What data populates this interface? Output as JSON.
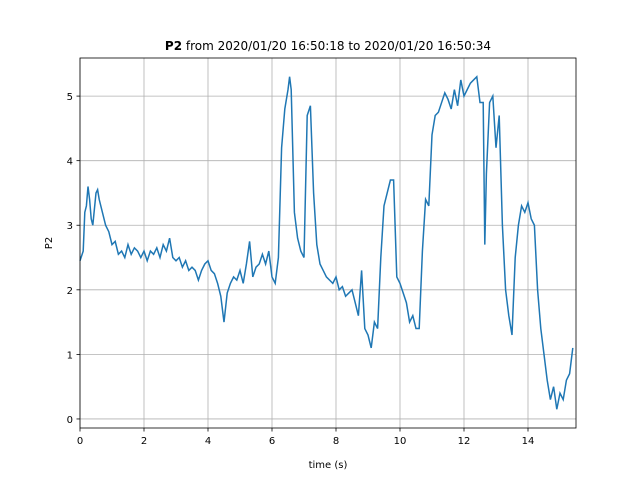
{
  "chart_data": {
    "type": "line",
    "title_bold": "P2",
    "title_rest": "from 2020/01/20 16:50:18 to 2020/01/20 16:50:34",
    "xlabel": "time (s)",
    "ylabel": "P2",
    "xlim": [
      0,
      15.5
    ],
    "ylim": [
      -0.14,
      5.59
    ],
    "xticks": [
      0,
      2,
      4,
      6,
      8,
      10,
      12,
      14
    ],
    "yticks": [
      0,
      1,
      2,
      3,
      4,
      5
    ],
    "grid": true,
    "series": [
      {
        "name": "P2",
        "color": "#1f77b4",
        "x": [
          0,
          0.1,
          0.15,
          0.2,
          0.25,
          0.3,
          0.35,
          0.4,
          0.5,
          0.55,
          0.6,
          0.7,
          0.8,
          0.9,
          1.0,
          1.1,
          1.2,
          1.3,
          1.4,
          1.5,
          1.6,
          1.7,
          1.8,
          1.9,
          2.0,
          2.1,
          2.2,
          2.3,
          2.4,
          2.5,
          2.6,
          2.7,
          2.8,
          2.9,
          3.0,
          3.1,
          3.2,
          3.3,
          3.4,
          3.5,
          3.6,
          3.7,
          3.8,
          3.9,
          4.0,
          4.1,
          4.2,
          4.3,
          4.4,
          4.5,
          4.6,
          4.7,
          4.8,
          4.9,
          5.0,
          5.1,
          5.2,
          5.3,
          5.4,
          5.5,
          5.6,
          5.7,
          5.8,
          5.9,
          6.0,
          6.1,
          6.2,
          6.3,
          6.4,
          6.5,
          6.55,
          6.6,
          6.7,
          6.8,
          6.9,
          7.0,
          7.1,
          7.2,
          7.3,
          7.4,
          7.5,
          7.6,
          7.7,
          7.8,
          7.9,
          8.0,
          8.1,
          8.2,
          8.3,
          8.4,
          8.5,
          8.6,
          8.7,
          8.8,
          8.9,
          9.0,
          9.1,
          9.2,
          9.3,
          9.4,
          9.5,
          9.6,
          9.7,
          9.8,
          9.9,
          10.0,
          10.1,
          10.2,
          10.3,
          10.4,
          10.5,
          10.6,
          10.7,
          10.8,
          10.9,
          11.0,
          11.1,
          11.2,
          11.3,
          11.4,
          11.5,
          11.6,
          11.7,
          11.8,
          11.9,
          12.0,
          12.1,
          12.2,
          12.3,
          12.4,
          12.5,
          12.6,
          12.65,
          12.7,
          12.8,
          12.9,
          13.0,
          13.1,
          13.2,
          13.3,
          13.4,
          13.5,
          13.6,
          13.7,
          13.8,
          13.9,
          14.0,
          14.1,
          14.2,
          14.3,
          14.4,
          14.5,
          14.6,
          14.7,
          14.8,
          14.9,
          15.0,
          15.1,
          15.2,
          15.3,
          15.4
        ],
        "values": [
          2.45,
          2.6,
          3.2,
          3.3,
          3.6,
          3.4,
          3.1,
          3.0,
          3.5,
          3.55,
          3.4,
          3.2,
          3.0,
          2.9,
          2.7,
          2.75,
          2.55,
          2.6,
          2.5,
          2.7,
          2.55,
          2.65,
          2.6,
          2.5,
          2.6,
          2.45,
          2.6,
          2.55,
          2.65,
          2.5,
          2.7,
          2.6,
          2.8,
          2.5,
          2.45,
          2.5,
          2.35,
          2.45,
          2.3,
          2.35,
          2.3,
          2.15,
          2.3,
          2.4,
          2.45,
          2.3,
          2.25,
          2.1,
          1.9,
          1.5,
          1.95,
          2.1,
          2.2,
          2.15,
          2.3,
          2.1,
          2.4,
          2.75,
          2.2,
          2.35,
          2.4,
          2.55,
          2.4,
          2.6,
          2.2,
          2.1,
          2.5,
          4.2,
          4.8,
          5.1,
          5.3,
          5.1,
          3.2,
          2.8,
          2.6,
          2.5,
          4.7,
          4.85,
          3.5,
          2.7,
          2.4,
          2.3,
          2.2,
          2.15,
          2.1,
          2.2,
          2.0,
          2.05,
          1.9,
          1.95,
          2.0,
          1.8,
          1.6,
          2.3,
          1.4,
          1.3,
          1.1,
          1.5,
          1.4,
          2.5,
          3.3,
          3.5,
          3.7,
          3.7,
          2.2,
          2.1,
          1.95,
          1.8,
          1.5,
          1.6,
          1.4,
          1.4,
          2.6,
          3.4,
          3.3,
          4.4,
          4.7,
          4.75,
          4.9,
          5.05,
          4.95,
          4.8,
          5.1,
          4.85,
          5.25,
          5.0,
          5.1,
          5.2,
          5.25,
          5.3,
          4.9,
          4.9,
          2.7,
          3.8,
          4.9,
          5.0,
          4.2,
          4.7,
          3.0,
          2.0,
          1.6,
          1.3,
          2.5,
          3.0,
          3.3,
          3.2,
          3.35,
          3.1,
          3.0,
          2.0,
          1.4,
          1.0,
          0.6,
          0.3,
          0.5,
          0.15,
          0.4,
          0.3,
          0.6,
          0.7,
          1.1
        ]
      }
    ]
  }
}
